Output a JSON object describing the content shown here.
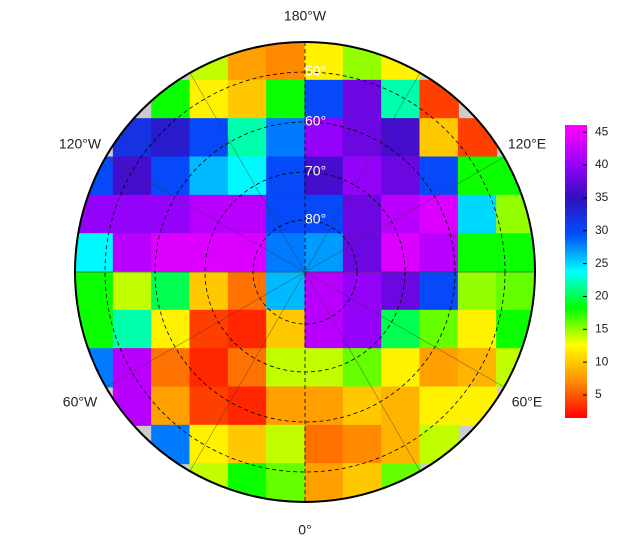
{
  "map": {
    "type": "polar-heatmap",
    "lon_labels": [
      "180°W",
      "120°W",
      "120°E",
      "60°W",
      "60°E",
      "0°"
    ],
    "lat_labels": [
      "50°",
      "60°",
      "70°",
      "80°"
    ],
    "colorbar": {
      "lim": [
        1.5,
        46.1
      ],
      "ticks": [
        5,
        10,
        15,
        20,
        25,
        30,
        35,
        40,
        45
      ],
      "colors": [
        "#ff0000",
        "#ff8c00",
        "#ffff00",
        "#00ff00",
        "#00ffff",
        "#0050ff",
        "#3010c0",
        "#a000ff",
        "#ff00ff"
      ]
    },
    "field": [
      [
        null,
        null,
        null,
        14,
        8,
        7,
        12,
        15,
        12,
        null,
        null,
        null
      ],
      [
        null,
        null,
        18,
        12,
        10,
        18,
        30,
        38,
        22,
        4,
        null,
        null
      ],
      [
        null,
        32,
        34,
        30,
        22,
        28,
        40,
        38,
        36,
        10,
        4,
        null
      ],
      [
        30,
        36,
        30,
        26,
        24,
        30,
        36,
        40,
        38,
        30,
        18,
        18
      ],
      [
        40,
        40,
        40,
        42,
        42,
        30,
        30,
        38,
        42,
        44,
        25,
        15
      ],
      [
        24,
        42,
        44,
        44,
        44,
        28,
        27,
        38,
        44,
        42,
        18,
        18
      ],
      [
        18,
        14,
        20,
        10,
        6,
        26,
        42,
        40,
        38,
        30,
        15,
        16
      ],
      [
        18,
        22,
        12,
        4,
        3,
        10,
        42,
        40,
        20,
        16,
        12,
        18
      ],
      [
        28,
        42,
        6,
        3,
        6,
        14,
        14,
        16,
        12,
        8,
        9,
        14
      ],
      [
        null,
        42,
        8,
        4,
        3,
        8,
        8,
        10,
        9,
        12,
        12,
        null
      ],
      [
        null,
        null,
        28,
        12,
        10,
        14,
        6,
        7,
        9,
        14,
        null,
        null
      ],
      [
        null,
        null,
        null,
        14,
        18,
        16,
        8,
        10,
        16,
        null,
        null,
        null
      ]
    ]
  }
}
